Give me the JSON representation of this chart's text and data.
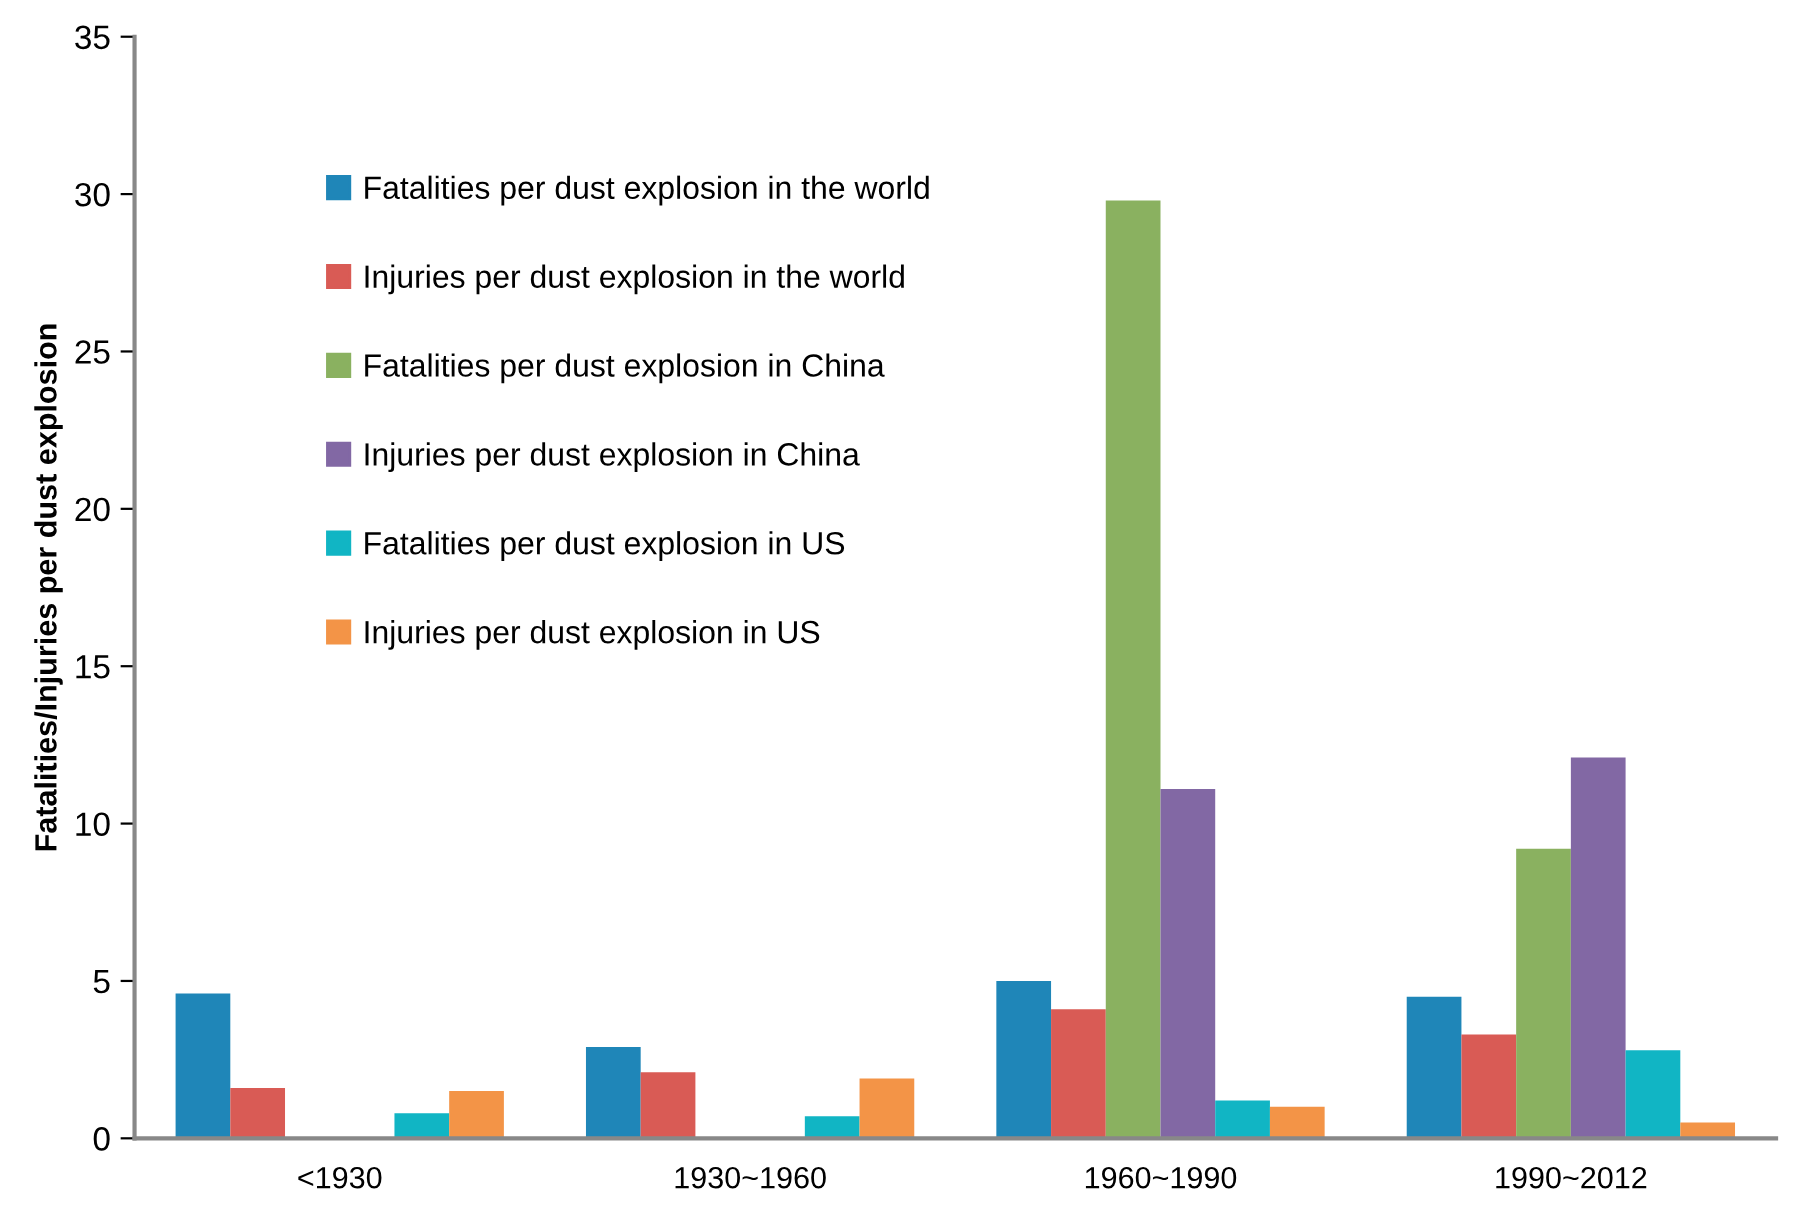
{
  "chart_data": {
    "type": "bar",
    "ylabel": "Fatalities/Injuries per dust explosion",
    "categories": [
      "<1930",
      "1930~1960",
      "1960~1990",
      "1990~2012"
    ],
    "series": [
      {
        "name": "Fatalities per dust explosion in the world",
        "color": "#1f86b8",
        "values": [
          4.6,
          2.9,
          5.0,
          4.5
        ]
      },
      {
        "name": "Injuries per dust explosion in the world",
        "color": "#d95b55",
        "values": [
          1.6,
          2.1,
          4.1,
          3.3
        ]
      },
      {
        "name": "Fatalities per dust explosion in China",
        "color": "#8ab160",
        "values": [
          null,
          null,
          29.8,
          9.2
        ]
      },
      {
        "name": "Injuries per dust explosion in China",
        "color": "#8268a4",
        "values": [
          null,
          null,
          11.1,
          12.1
        ]
      },
      {
        "name": "Fatalities per dust explosion in US",
        "color": "#11b5c4",
        "values": [
          0.8,
          0.7,
          1.2,
          2.8
        ]
      },
      {
        "name": "Injuries per dust explosion in US",
        "color": "#f39447",
        "values": [
          1.5,
          1.9,
          1.0,
          0.5
        ]
      }
    ],
    "ylim": [
      0,
      35
    ],
    "yticks": [
      0,
      5,
      10,
      15,
      20,
      25,
      30,
      35
    ],
    "grid": false,
    "legend": "top left"
  }
}
